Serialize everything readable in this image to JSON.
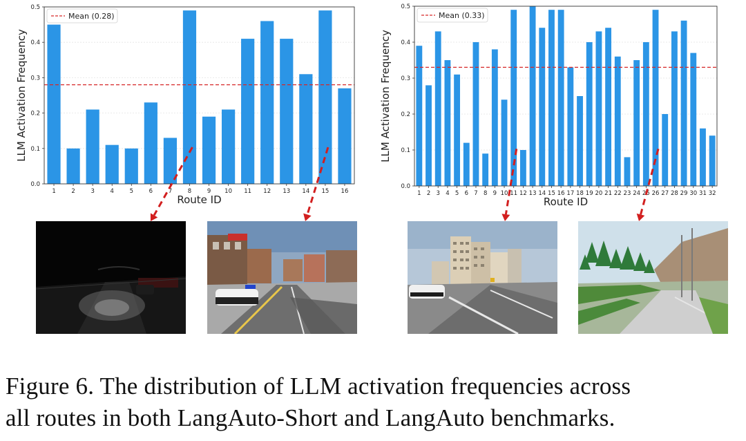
{
  "chart_data": [
    {
      "type": "bar",
      "categories": [
        "1",
        "2",
        "3",
        "4",
        "5",
        "6",
        "7",
        "8",
        "9",
        "10",
        "11",
        "12",
        "13",
        "14",
        "15",
        "16"
      ],
      "values": [
        0.45,
        0.1,
        0.21,
        0.11,
        0.1,
        0.23,
        0.13,
        0.49,
        0.19,
        0.21,
        0.41,
        0.46,
        0.41,
        0.31,
        0.49,
        0.27
      ],
      "mean": 0.28,
      "legend_label": "Mean (0.28)",
      "legend_position": "top-left",
      "xlabel": "Route ID",
      "ylabel": "LLM Activation Frequency",
      "ylim": [
        0,
        0.5
      ],
      "yticks": [
        "0.0",
        "0.1",
        "0.2",
        "0.3",
        "0.4",
        "0.5"
      ],
      "grid": "horizontal",
      "bar_color": "#2b95e6",
      "mean_color": "#d62728"
    },
    {
      "type": "bar",
      "categories": [
        "1",
        "2",
        "3",
        "4",
        "5",
        "6",
        "7",
        "8",
        "9",
        "10",
        "11",
        "12",
        "13",
        "14",
        "15",
        "16",
        "17",
        "18",
        "19",
        "20",
        "21",
        "22",
        "23",
        "24",
        "25",
        "26",
        "27",
        "28",
        "29",
        "30",
        "31",
        "32"
      ],
      "values": [
        0.39,
        0.28,
        0.43,
        0.35,
        0.31,
        0.12,
        0.4,
        0.09,
        0.38,
        0.24,
        0.49,
        0.1,
        0.5,
        0.44,
        0.49,
        0.49,
        0.33,
        0.25,
        0.4,
        0.43,
        0.44,
        0.36,
        0.08,
        0.35,
        0.4,
        0.49,
        0.2,
        0.43,
        0.46,
        0.37,
        0.16,
        0.14
      ],
      "mean": 0.33,
      "legend_label": "Mean (0.33)",
      "legend_position": "top-left",
      "xlabel": "Route ID",
      "ylabel": "LLM Activation Frequency",
      "ylim": [
        0,
        0.5
      ],
      "yticks": [
        "0.0",
        "0.1",
        "0.2",
        "0.3",
        "0.4",
        "0.5"
      ],
      "grid": "horizontal",
      "bar_color": "#2b95e6",
      "mean_color": "#d62728"
    }
  ],
  "callouts": [
    {
      "chart": 0,
      "route": "8",
      "target": "night-scene"
    },
    {
      "chart": 0,
      "route": "15",
      "target": "city-scene"
    },
    {
      "chart": 1,
      "route": "11",
      "target": "buildings-scene"
    },
    {
      "chart": 1,
      "route": "26",
      "target": "forest-scene"
    }
  ],
  "caption": {
    "line1": "Figure 6.  The distribution of LLM activation frequencies across",
    "line2": "all routes in both LangAuto-Short and LangAuto benchmarks."
  }
}
